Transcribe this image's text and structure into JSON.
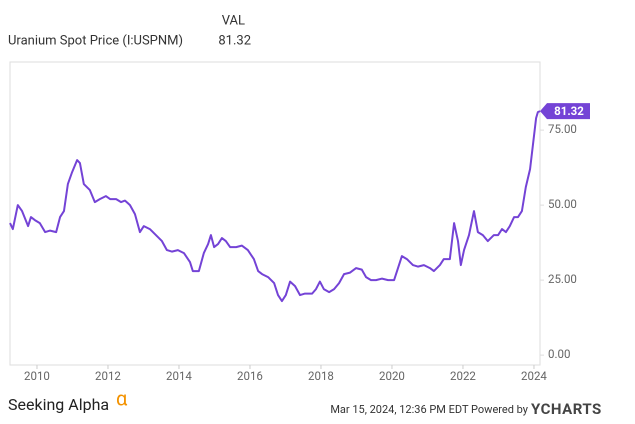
{
  "chart_data": {
    "type": "line",
    "value_header": "VAL",
    "series": [
      {
        "name": "Uranium Spot Price (I:USPNM)",
        "latest": "81.32",
        "color": "#7443d6",
        "values": [
          44,
          42,
          50,
          48,
          43,
          46,
          45,
          44,
          41,
          41.5,
          41,
          46,
          48,
          57,
          61,
          65,
          64,
          57,
          55,
          51,
          52,
          53,
          52,
          52,
          51,
          51.5,
          50,
          47,
          41,
          43,
          42,
          40,
          38,
          35,
          34.5,
          35,
          34,
          31,
          28,
          28,
          34,
          37,
          40,
          36,
          37,
          39,
          38,
          36,
          36,
          36.5,
          35,
          32,
          28,
          27,
          26,
          24,
          20,
          18,
          20,
          24.5,
          23,
          20,
          20.5,
          20.5,
          22,
          24.5,
          22,
          21,
          22,
          24,
          27,
          27.5,
          29,
          28.5,
          26,
          25,
          25,
          25.5,
          25,
          25,
          29,
          33,
          32,
          30,
          29.5,
          30,
          29,
          28,
          30,
          32,
          32,
          44,
          38,
          30,
          35,
          40,
          48,
          41,
          40,
          38,
          40,
          40,
          42,
          41,
          43,
          46,
          46,
          48,
          56,
          62,
          70,
          79,
          81,
          81.32
        ]
      }
    ],
    "x": [
      2009.24,
      2009.32,
      2009.46,
      2009.58,
      2009.75,
      2009.83,
      2009.94,
      2010.08,
      2010.23,
      2010.37,
      2010.54,
      2010.65,
      2010.76,
      2010.87,
      2010.99,
      2011.13,
      2011.21,
      2011.32,
      2011.49,
      2011.63,
      2011.77,
      2011.94,
      2012.06,
      2012.23,
      2012.37,
      2012.48,
      2012.62,
      2012.76,
      2012.9,
      2013.01,
      2013.18,
      2013.35,
      2013.52,
      2013.66,
      2013.8,
      2013.97,
      2014.14,
      2014.31,
      2014.39,
      2014.56,
      2014.7,
      2014.82,
      2014.9,
      2014.99,
      2015.1,
      2015.21,
      2015.32,
      2015.44,
      2015.61,
      2015.77,
      2015.94,
      2016.11,
      2016.23,
      2016.34,
      2016.51,
      2016.68,
      2016.79,
      2016.9,
      2017.01,
      2017.13,
      2017.27,
      2017.41,
      2017.55,
      2017.75,
      2017.86,
      2017.97,
      2018.08,
      2018.23,
      2018.37,
      2018.51,
      2018.65,
      2018.82,
      2018.99,
      2019.15,
      2019.27,
      2019.41,
      2019.55,
      2019.72,
      2019.89,
      2020.06,
      2020.17,
      2020.28,
      2020.42,
      2020.59,
      2020.73,
      2020.9,
      2021.07,
      2021.18,
      2021.35,
      2021.46,
      2021.63,
      2021.75,
      2021.86,
      2021.94,
      2022.03,
      2022.17,
      2022.31,
      2022.42,
      2022.56,
      2022.7,
      2022.87,
      2022.99,
      2023.1,
      2023.21,
      2023.32,
      2023.44,
      2023.55,
      2023.66,
      2023.77,
      2023.89,
      2023.97,
      2024.06,
      2024.11,
      2024.17
    ],
    "xlim": [
      2009.24,
      2024.17
    ],
    "xticks": [
      2010,
      2012,
      2014,
      2016,
      2018,
      2020,
      2022,
      2024
    ],
    "ylim": [
      -3.3,
      97.7
    ],
    "yticks": [
      {
        "value": 0,
        "label": "0.00"
      },
      {
        "value": 25,
        "label": "25.00"
      },
      {
        "value": 50,
        "label": "50.00"
      },
      {
        "value": 75,
        "label": "75.00"
      }
    ],
    "grid": false,
    "footer": {
      "brand": "Seeking Alpha",
      "brand_mark": "α",
      "timestamp": "Mar 15, 2024, 12:36 PM EDT Powered by",
      "provider": "YCHARTS"
    }
  }
}
